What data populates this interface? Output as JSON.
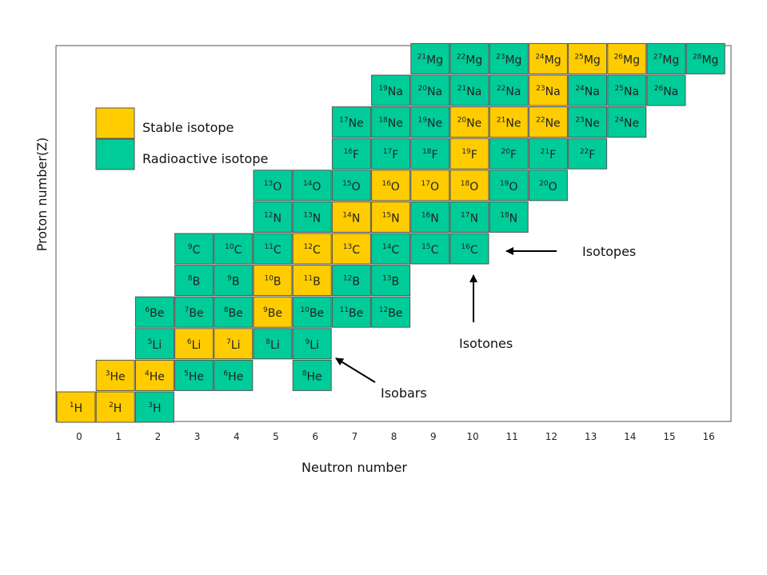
{
  "chart_data": {
    "type": "table",
    "xlabel": "Neutron number",
    "ylabel": "Proton number(Z)",
    "x_ticks": [
      "0",
      "1",
      "2",
      "3",
      "4",
      "5",
      "6",
      "7",
      "8",
      "9",
      "10",
      "11",
      "12",
      "13",
      "14",
      "15",
      "16"
    ],
    "colors": {
      "stable": "#FFCC00",
      "radioactive": "#00CC99",
      "border": "#555555"
    },
    "legend": [
      {
        "key": "stable",
        "label": "Stable isotope"
      },
      {
        "key": "radioactive",
        "label": "Radioactive isotope"
      }
    ],
    "annotations": [
      {
        "id": "isotopes",
        "text": "Isotopes"
      },
      {
        "id": "isotones",
        "text": "Isotones"
      },
      {
        "id": "isobars",
        "text": "Isobars"
      }
    ],
    "elements": [
      {
        "symbol": "H",
        "z": 1,
        "nuclides": [
          {
            "a": 1,
            "n": 0,
            "stable": true
          },
          {
            "a": 2,
            "n": 1,
            "stable": true
          },
          {
            "a": 3,
            "n": 2,
            "stable": false
          }
        ]
      },
      {
        "symbol": "He",
        "z": 2,
        "nuclides": [
          {
            "a": 3,
            "n": 1,
            "stable": true
          },
          {
            "a": 4,
            "n": 2,
            "stable": true
          },
          {
            "a": 5,
            "n": 3,
            "stable": false
          },
          {
            "a": 6,
            "n": 4,
            "stable": false
          },
          {
            "a": 8,
            "n": 6,
            "stable": false
          }
        ]
      },
      {
        "symbol": "Li",
        "z": 3,
        "nuclides": [
          {
            "a": 5,
            "n": 2,
            "stable": false
          },
          {
            "a": 6,
            "n": 3,
            "stable": true
          },
          {
            "a": 7,
            "n": 4,
            "stable": true
          },
          {
            "a": 8,
            "n": 5,
            "stable": false
          },
          {
            "a": 9,
            "n": 6,
            "stable": false
          }
        ]
      },
      {
        "symbol": "Be",
        "z": 4,
        "nuclides": [
          {
            "a": 6,
            "n": 2,
            "stable": false
          },
          {
            "a": 7,
            "n": 3,
            "stable": false
          },
          {
            "a": 8,
            "n": 4,
            "stable": false
          },
          {
            "a": 9,
            "n": 5,
            "stable": true
          },
          {
            "a": 10,
            "n": 6,
            "stable": false
          },
          {
            "a": 11,
            "n": 7,
            "stable": false
          },
          {
            "a": 12,
            "n": 8,
            "stable": false
          }
        ]
      },
      {
        "symbol": "B",
        "z": 5,
        "nuclides": [
          {
            "a": 8,
            "n": 3,
            "stable": false
          },
          {
            "a": 9,
            "n": 4,
            "stable": false
          },
          {
            "a": 10,
            "n": 5,
            "stable": true
          },
          {
            "a": 11,
            "n": 6,
            "stable": true
          },
          {
            "a": 12,
            "n": 7,
            "stable": false
          },
          {
            "a": 13,
            "n": 8,
            "stable": false
          }
        ]
      },
      {
        "symbol": "C",
        "z": 6,
        "nuclides": [
          {
            "a": 9,
            "n": 3,
            "stable": false
          },
          {
            "a": 10,
            "n": 4,
            "stable": false
          },
          {
            "a": 11,
            "n": 5,
            "stable": false
          },
          {
            "a": 12,
            "n": 6,
            "stable": true
          },
          {
            "a": 13,
            "n": 7,
            "stable": true
          },
          {
            "a": 14,
            "n": 8,
            "stable": false
          },
          {
            "a": 15,
            "n": 9,
            "stable": false
          },
          {
            "a": 16,
            "n": 10,
            "stable": false
          }
        ]
      },
      {
        "symbol": "N",
        "z": 7,
        "nuclides": [
          {
            "a": 12,
            "n": 5,
            "stable": false
          },
          {
            "a": 13,
            "n": 6,
            "stable": false
          },
          {
            "a": 14,
            "n": 7,
            "stable": true
          },
          {
            "a": 15,
            "n": 8,
            "stable": true
          },
          {
            "a": 16,
            "n": 9,
            "stable": false
          },
          {
            "a": 17,
            "n": 10,
            "stable": false
          },
          {
            "a": 18,
            "n": 11,
            "stable": false
          }
        ]
      },
      {
        "symbol": "O",
        "z": 8,
        "nuclides": [
          {
            "a": 13,
            "n": 5,
            "stable": false
          },
          {
            "a": 14,
            "n": 6,
            "stable": false
          },
          {
            "a": 15,
            "n": 7,
            "stable": false
          },
          {
            "a": 16,
            "n": 8,
            "stable": true
          },
          {
            "a": 17,
            "n": 9,
            "stable": true
          },
          {
            "a": 18,
            "n": 10,
            "stable": true
          },
          {
            "a": 19,
            "n": 11,
            "stable": false
          },
          {
            "a": 20,
            "n": 12,
            "stable": false
          }
        ]
      },
      {
        "symbol": "F",
        "z": 9,
        "nuclides": [
          {
            "a": 16,
            "n": 7,
            "stable": false
          },
          {
            "a": 17,
            "n": 8,
            "stable": false
          },
          {
            "a": 18,
            "n": 9,
            "stable": false
          },
          {
            "a": 19,
            "n": 10,
            "stable": true
          },
          {
            "a": 20,
            "n": 11,
            "stable": false
          },
          {
            "a": 21,
            "n": 12,
            "stable": false
          },
          {
            "a": 22,
            "n": 13,
            "stable": false
          }
        ]
      },
      {
        "symbol": "Ne",
        "z": 10,
        "nuclides": [
          {
            "a": 17,
            "n": 7,
            "stable": false
          },
          {
            "a": 18,
            "n": 8,
            "stable": false
          },
          {
            "a": 19,
            "n": 9,
            "stable": false
          },
          {
            "a": 20,
            "n": 10,
            "stable": true
          },
          {
            "a": 21,
            "n": 11,
            "stable": true
          },
          {
            "a": 22,
            "n": 12,
            "stable": true
          },
          {
            "a": 23,
            "n": 13,
            "stable": false
          },
          {
            "a": 24,
            "n": 14,
            "stable": false
          }
        ]
      },
      {
        "symbol": "Na",
        "z": 11,
        "nuclides": [
          {
            "a": 19,
            "n": 8,
            "stable": false
          },
          {
            "a": 20,
            "n": 9,
            "stable": false
          },
          {
            "a": 21,
            "n": 10,
            "stable": false
          },
          {
            "a": 22,
            "n": 11,
            "stable": false
          },
          {
            "a": 23,
            "n": 12,
            "stable": true
          },
          {
            "a": 24,
            "n": 13,
            "stable": false
          },
          {
            "a": 25,
            "n": 14,
            "stable": false
          },
          {
            "a": 26,
            "n": 15,
            "stable": false
          }
        ]
      },
      {
        "symbol": "Mg",
        "z": 12,
        "nuclides": [
          {
            "a": 21,
            "n": 9,
            "stable": false
          },
          {
            "a": 22,
            "n": 10,
            "stable": false
          },
          {
            "a": 23,
            "n": 11,
            "stable": false
          },
          {
            "a": 24,
            "n": 12,
            "stable": true
          },
          {
            "a": 25,
            "n": 13,
            "stable": true
          },
          {
            "a": 26,
            "n": 14,
            "stable": true
          },
          {
            "a": 27,
            "n": 15,
            "stable": false
          },
          {
            "a": 28,
            "n": 16,
            "stable": false
          }
        ]
      }
    ]
  }
}
